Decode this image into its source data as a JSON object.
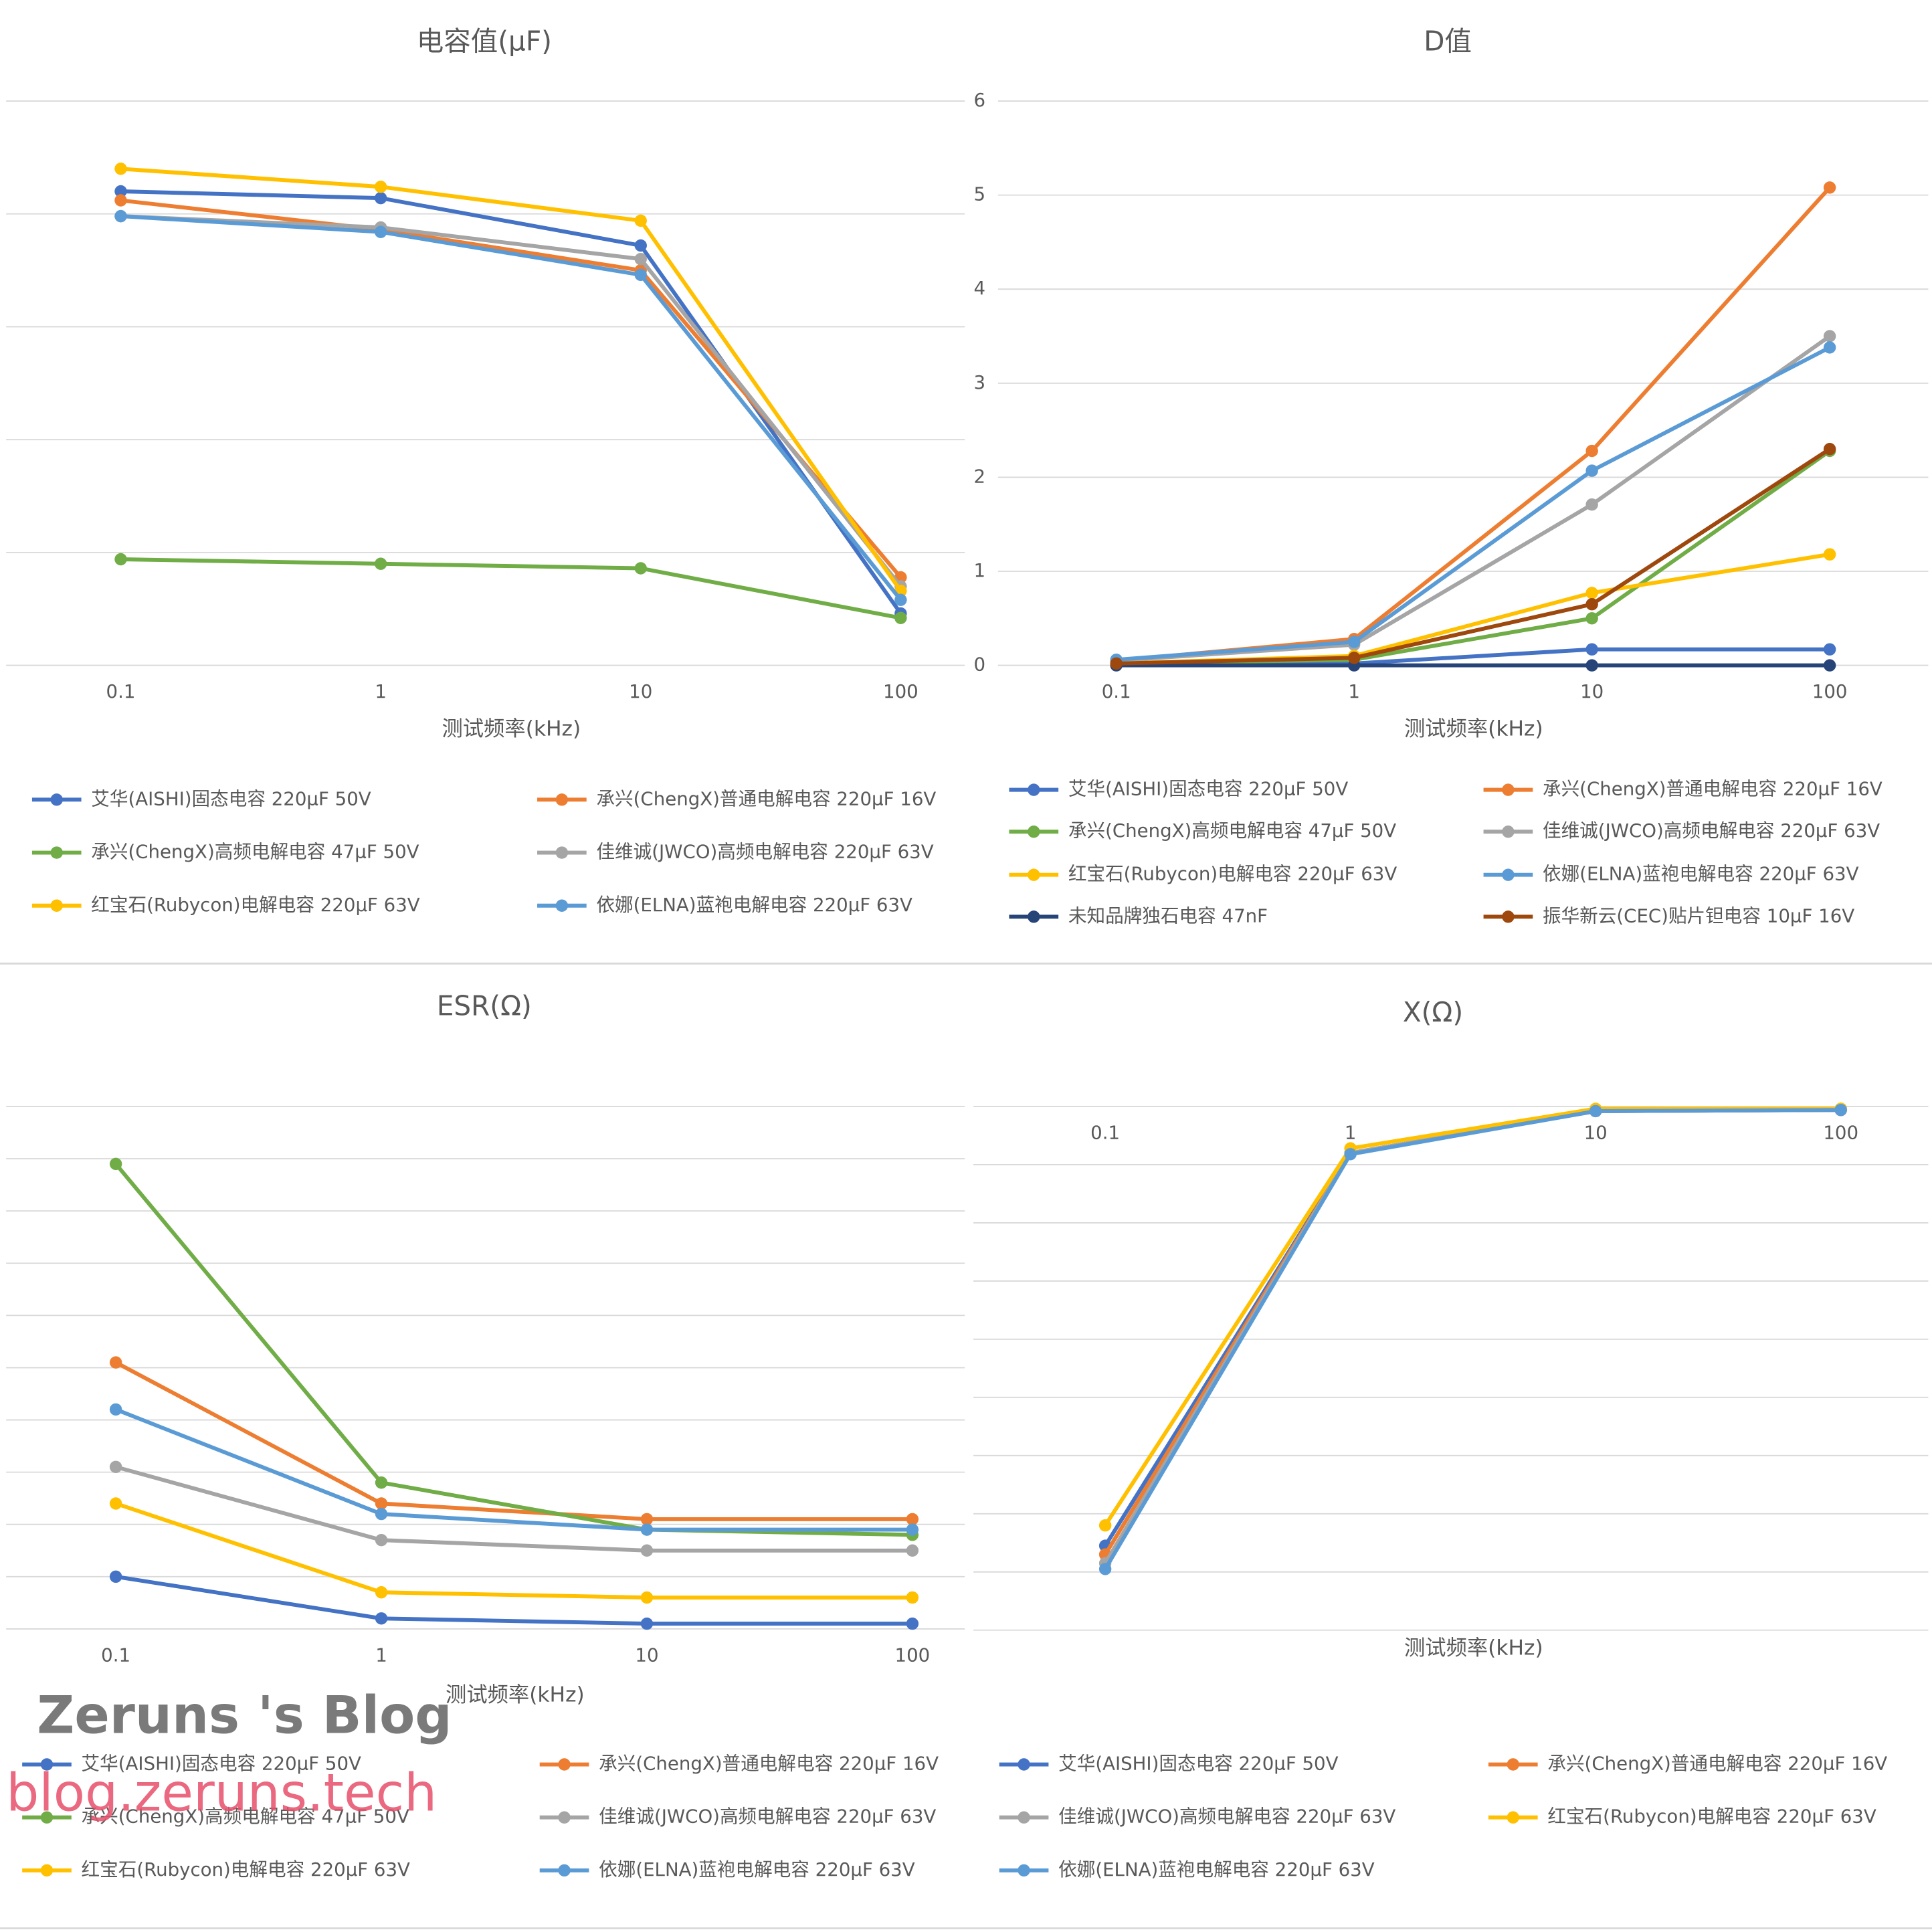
{
  "chart_data": [
    {
      "type": "line",
      "title": "电容值(μF)",
      "x_label": "测试频率(kHz)",
      "categories": [
        "0.1",
        "1",
        "10",
        "100"
      ],
      "ylim": [
        0,
        250
      ],
      "yticks": [
        0,
        50,
        100,
        150,
        200,
        250
      ],
      "ytick_labels": false,
      "grid": true,
      "series": [
        {
          "name": "艾华(AISHI)固态电容 220μF 50V",
          "color": "#4472c4",
          "values": [
            210,
            207,
            186,
            23
          ]
        },
        {
          "name": "承兴(ChengX)普通电解电容 220μF 16V",
          "color": "#ed7d31",
          "values": [
            206,
            193,
            175,
            39
          ]
        },
        {
          "name": "承兴(ChengX)高频电解电容 47μF 50V",
          "color": "#70ad47",
          "values": [
            47,
            45,
            43,
            21
          ]
        },
        {
          "name": "佳维诚(JWCO)高频电解电容 220μF 63V",
          "color": "#a5a5a5",
          "values": [
            199,
            194,
            180,
            35
          ]
        },
        {
          "name": "红宝石(Rubycon)电解电容 220μF 63V",
          "color": "#ffc000",
          "values": [
            220,
            212,
            197,
            33
          ]
        },
        {
          "name": "依娜(ELNA)蓝袍电解电容 220μF 63V",
          "color": "#5b9bd5",
          "values": [
            199,
            192,
            173,
            29
          ]
        }
      ]
    },
    {
      "type": "line",
      "title": "D值",
      "x_label": "测试频率(kHz)",
      "categories": [
        "0.1",
        "1",
        "10",
        "100"
      ],
      "ylim": [
        0,
        6
      ],
      "yticks": [
        0,
        1,
        2,
        3,
        4,
        5,
        6
      ],
      "ytick_labels": true,
      "grid": true,
      "series": [
        {
          "name": "艾华(AISHI)固态电容 220μF 50V",
          "color": "#4472c4",
          "values": [
            0.02,
            0.02,
            0.17,
            0.17
          ]
        },
        {
          "name": "承兴(ChengX)普通电解电容 220μF 16V",
          "color": "#ed7d31",
          "values": [
            0.05,
            0.28,
            2.28,
            5.08
          ]
        },
        {
          "name": "承兴(ChengX)高频电解电容 47μF 50V",
          "color": "#70ad47",
          "values": [
            0.02,
            0.06,
            0.5,
            2.28
          ]
        },
        {
          "name": "佳维诚(JWCO)高频电解电容 220μF 63V",
          "color": "#a5a5a5",
          "values": [
            0.05,
            0.22,
            1.71,
            3.5
          ]
        },
        {
          "name": "红宝石(Rubycon)电解电容 220μF 63V",
          "color": "#ffc000",
          "values": [
            0.02,
            0.1,
            0.77,
            1.18
          ]
        },
        {
          "name": "依娜(ELNA)蓝袍电解电容 220μF 63V",
          "color": "#5b9bd5",
          "values": [
            0.06,
            0.25,
            2.07,
            3.38
          ]
        },
        {
          "name": "未知品牌独石电容 47nF",
          "color": "#264478",
          "values": [
            0,
            0,
            0,
            0
          ]
        },
        {
          "name": "振华新云(CEC)贴片钽电容 10μF 16V",
          "color": "#9e480e",
          "values": [
            0.02,
            0.08,
            0.65,
            2.3
          ]
        }
      ]
    },
    {
      "type": "line",
      "title": "ESR(Ω)",
      "x_label": "测试频率(kHz)",
      "categories": [
        "0.1",
        "1",
        "10",
        "100"
      ],
      "ylim": [
        0,
        10
      ],
      "yticks": [
        0,
        1,
        2,
        3,
        4,
        5,
        6,
        7,
        8,
        9,
        10
      ],
      "ytick_labels": false,
      "grid": true,
      "series": [
        {
          "name": "艾华(AISHI)固态电容 220μF 50V",
          "color": "#4472c4",
          "values": [
            1.0,
            0.2,
            0.1,
            0.1
          ]
        },
        {
          "name": "承兴(ChengX)普通电解电容 220μF 16V",
          "color": "#ed7d31",
          "values": [
            5.1,
            2.4,
            2.1,
            2.1
          ]
        },
        {
          "name": "承兴(ChengX)高频电解电容 47μF 50V",
          "color": "#70ad47",
          "values": [
            8.9,
            2.8,
            1.9,
            1.8
          ]
        },
        {
          "name": "佳维诚(JWCO)高频电解电容 220μF 63V",
          "color": "#a5a5a5",
          "values": [
            3.1,
            1.7,
            1.5,
            1.5
          ]
        },
        {
          "name": "红宝石(Rubycon)电解电容 220μF 63V",
          "color": "#ffc000",
          "values": [
            2.4,
            0.7,
            0.6,
            0.6
          ]
        },
        {
          "name": "依娜(ELNA)蓝袍电解电容 220μF 63V",
          "color": "#5b9bd5",
          "values": [
            4.2,
            2.2,
            1.9,
            1.9
          ]
        }
      ]
    },
    {
      "type": "line",
      "title": "X(Ω)",
      "x_label": "测试频率(kHz)",
      "categories": [
        "0.1",
        "1",
        "10",
        "100"
      ],
      "ylim": [
        -9,
        0
      ],
      "yticks": [
        -9,
        -8,
        -7,
        -6,
        -5,
        -4,
        -3,
        -2,
        -1,
        0
      ],
      "ytick_labels": false,
      "grid": true,
      "series": [
        {
          "name": "艾华(AISHI)固态电容 220μF 50V",
          "color": "#4472c4",
          "values": [
            -7.55,
            -0.8,
            -0.08,
            -0.06
          ]
        },
        {
          "name": "承兴(ChengX)普通电解电容 220μF 16V",
          "color": "#ed7d31",
          "values": [
            -7.7,
            -0.8,
            -0.08,
            -0.06
          ]
        },
        {
          "name": "佳维诚(JWCO)高频电解电容 220μF 63V",
          "color": "#a5a5a5",
          "values": [
            -7.85,
            -0.8,
            -0.08,
            -0.04
          ]
        },
        {
          "name": "红宝石(Rubycon)电解电容 220μF 63V",
          "color": "#ffc000",
          "values": [
            -7.2,
            -0.72,
            -0.04,
            -0.04
          ]
        },
        {
          "name": "依娜(ELNA)蓝袍电解电容 220μF 63V",
          "color": "#5b9bd5",
          "values": [
            -7.95,
            -0.82,
            -0.08,
            -0.06
          ]
        }
      ]
    }
  ],
  "watermark": {
    "title": "Zeruns 's Blog",
    "url": "blog.zeruns.tech"
  }
}
